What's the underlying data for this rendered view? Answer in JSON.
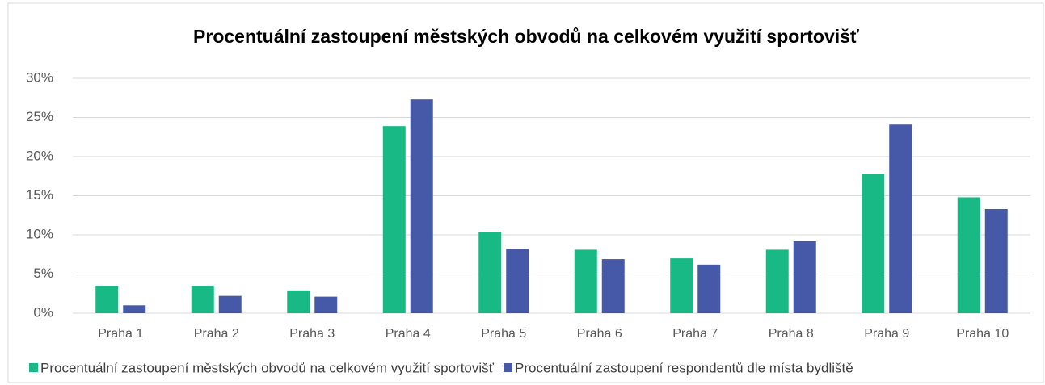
{
  "chart_data": {
    "type": "bar",
    "title": "Procentuální zastoupení městských obvodů na celkovém využití sportovišť",
    "categories": [
      "Praha 1",
      "Praha 2",
      "Praha 3",
      "Praha 4",
      "Praha 5",
      "Praha 6",
      "Praha 7",
      "Praha 8",
      "Praha 9",
      "Praha 10"
    ],
    "series": [
      {
        "name": "Procentuální zastoupení městských obvodů na celkovém využití sportovišť",
        "color": "#19b985",
        "values": [
          3.5,
          3.5,
          2.9,
          23.9,
          10.4,
          8.1,
          7.0,
          8.1,
          17.8,
          14.8
        ]
      },
      {
        "name": "Procentuální zastoupení respondentů dle místa bydliště",
        "color": "#4659a8",
        "values": [
          1.0,
          2.2,
          2.1,
          27.3,
          8.2,
          6.9,
          6.2,
          9.2,
          24.1,
          13.3
        ]
      }
    ],
    "ylim": [
      0,
      30
    ],
    "yticks": [
      {
        "value": 0,
        "label": "0%"
      },
      {
        "value": 5,
        "label": "5%"
      },
      {
        "value": 10,
        "label": "10%"
      },
      {
        "value": 15,
        "label": "15%"
      },
      {
        "value": 20,
        "label": "20%"
      },
      {
        "value": 25,
        "label": "25%"
      },
      {
        "value": 30,
        "label": "30%"
      }
    ],
    "grid": true,
    "legend": "bottom"
  }
}
